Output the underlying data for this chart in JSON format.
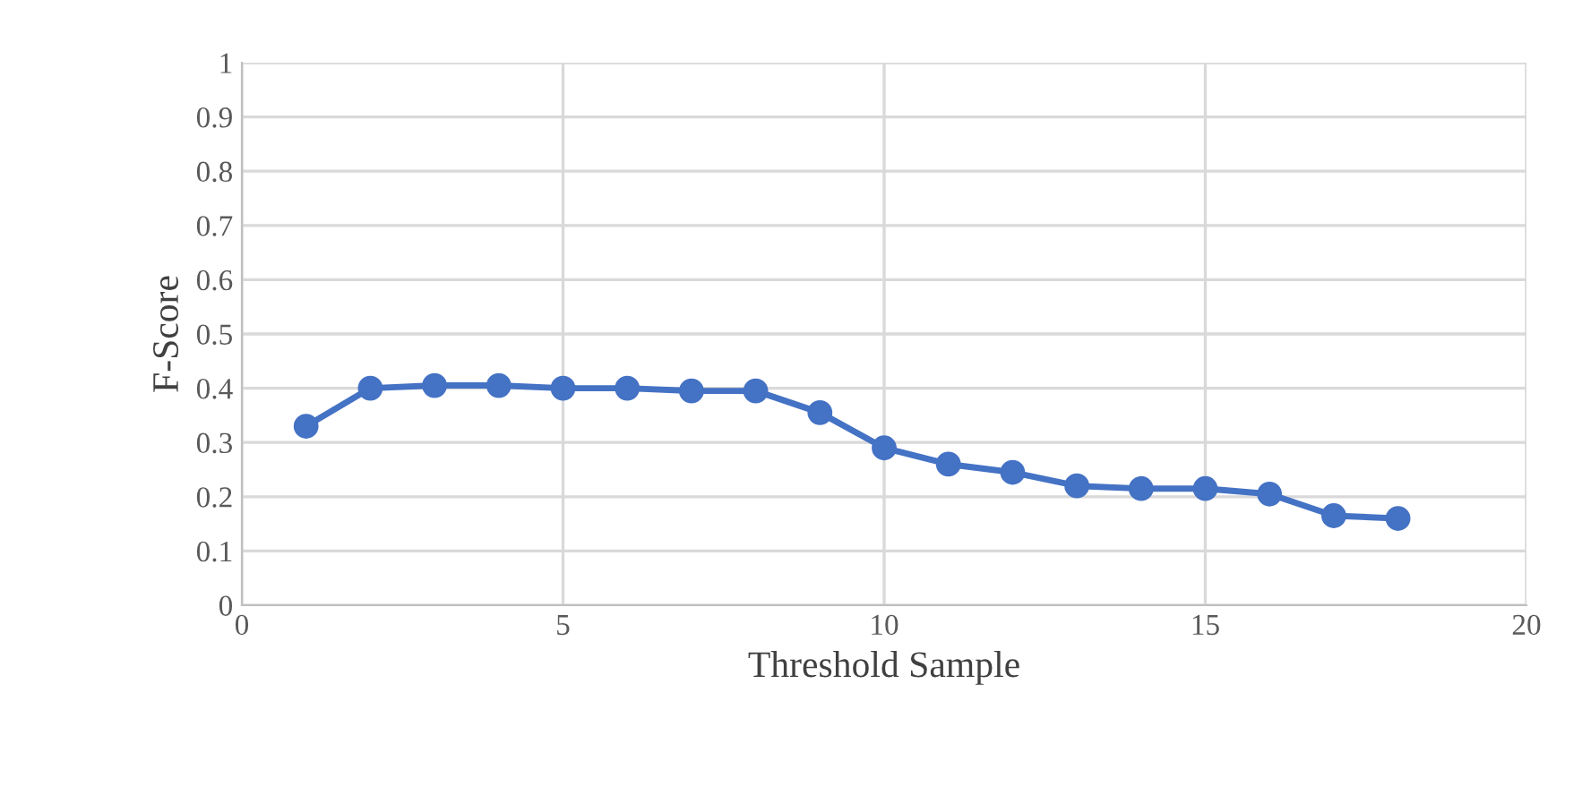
{
  "chart_data": {
    "type": "line",
    "xlabel": "Threshold Sample",
    "ylabel": "F-Score",
    "x": [
      1,
      2,
      3,
      4,
      5,
      6,
      7,
      8,
      9,
      10,
      11,
      12,
      13,
      14,
      15,
      16,
      17,
      18
    ],
    "series": [
      {
        "color": "#4472c4",
        "values": [
          0.33,
          0.4,
          0.405,
          0.405,
          0.4,
          0.4,
          0.395,
          0.395,
          0.355,
          0.29,
          0.26,
          0.245,
          0.22,
          0.215,
          0.215,
          0.205,
          0.165,
          0.16
        ]
      }
    ],
    "xlim": [
      0,
      20
    ],
    "xticks": [
      0,
      5,
      10,
      15,
      20
    ],
    "ylim": [
      0,
      1
    ],
    "yticks": [
      0,
      0.1,
      0.2,
      0.3,
      0.4,
      0.5,
      0.6,
      0.7,
      0.8,
      0.9,
      1
    ],
    "grid": true,
    "marker": "circle",
    "line_style": "solid",
    "legend": false
  }
}
